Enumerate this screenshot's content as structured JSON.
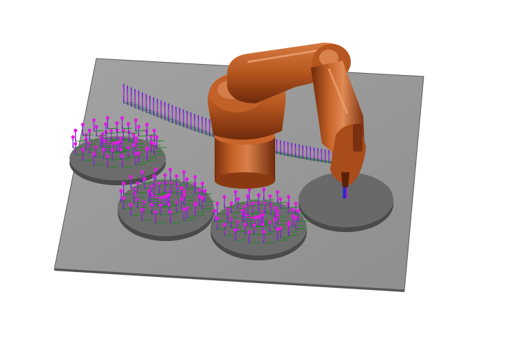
{
  "scene": {
    "description_label": "",
    "colors": {
      "background": "#ffffff",
      "table_top": "#9a9a9a",
      "table_edge": "#555555",
      "disc_top": "#6e6e6e",
      "disc_side": "#4a4a4a",
      "robot_orange": "#b5561f",
      "robot_dark": "#6e2a0b",
      "robot_light": "#e08a55",
      "frame_x": "#1a8a1a",
      "frame_z": "#2a2acc",
      "frame_point": "#e21be2"
    },
    "icons": {
      "robot": "industrial-robot-arm-icon",
      "table": "work-table-icon",
      "disc": "turntable-disc-icon"
    }
  }
}
